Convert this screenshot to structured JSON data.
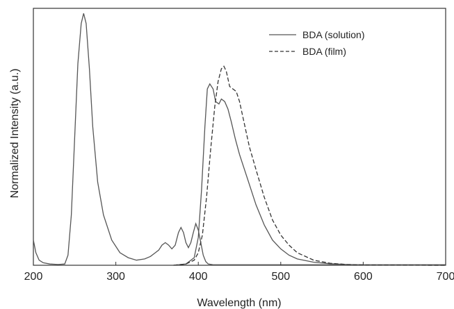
{
  "chart_data": {
    "type": "line",
    "title": "",
    "xlabel": "Wavelength (nm)",
    "ylabel": "Normalized Intensity (a.u.)",
    "xlim": [
      200,
      700
    ],
    "ylim": [
      0,
      1.02
    ],
    "xticks": [
      200,
      300,
      400,
      500,
      600,
      700
    ],
    "grid": false,
    "legend_position": "top-right",
    "series": [
      {
        "name": "BDA (solution)",
        "style": "solid",
        "color": "#555555",
        "x": [
          200,
          203,
          207,
          212,
          220,
          230,
          238,
          242,
          246,
          250,
          254,
          258,
          261,
          264,
          268,
          272,
          278,
          285,
          295,
          305,
          315,
          325,
          335,
          342,
          348,
          352,
          356,
          360,
          364,
          368,
          372,
          376,
          379,
          382,
          385,
          388,
          391,
          394,
          397,
          400,
          403,
          406,
          409,
          412,
          418,
          430,
          460,
          500,
          700
        ],
        "y": [
          0.1,
          0.05,
          0.02,
          0.01,
          0.005,
          0.003,
          0.005,
          0.04,
          0.2,
          0.5,
          0.8,
          0.96,
          1.0,
          0.96,
          0.78,
          0.55,
          0.33,
          0.2,
          0.1,
          0.05,
          0.03,
          0.02,
          0.025,
          0.035,
          0.05,
          0.06,
          0.08,
          0.09,
          0.08,
          0.065,
          0.08,
          0.13,
          0.15,
          0.13,
          0.09,
          0.07,
          0.09,
          0.13,
          0.165,
          0.14,
          0.09,
          0.04,
          0.015,
          0.005,
          0.002,
          0.002,
          0.002,
          0.002,
          0.002
        ]
      },
      {
        "name": "",
        "style": "solid",
        "color": "#555555",
        "x": [
          370,
          385,
          395,
          400,
          404,
          408,
          411,
          414,
          418,
          421,
          425,
          428,
          432,
          436,
          440,
          445,
          450,
          460,
          470,
          480,
          490,
          500,
          510,
          520,
          540,
          560,
          580,
          600,
          700
        ],
        "y": [
          0.0,
          0.005,
          0.03,
          0.11,
          0.3,
          0.55,
          0.7,
          0.72,
          0.7,
          0.65,
          0.64,
          0.66,
          0.65,
          0.62,
          0.57,
          0.5,
          0.44,
          0.34,
          0.24,
          0.16,
          0.1,
          0.065,
          0.04,
          0.025,
          0.012,
          0.006,
          0.003,
          0.001,
          0.0
        ]
      },
      {
        "name": "BDA (film)",
        "style": "dashed",
        "color": "#333333",
        "x": [
          370,
          385,
          395,
          400,
          405,
          410,
          415,
          420,
          424,
          428,
          431,
          434,
          438,
          442,
          446,
          450,
          456,
          462,
          470,
          480,
          490,
          500,
          510,
          520,
          540,
          560,
          580,
          600,
          700
        ],
        "y": [
          0.0,
          0.005,
          0.02,
          0.05,
          0.12,
          0.27,
          0.46,
          0.63,
          0.73,
          0.78,
          0.79,
          0.77,
          0.71,
          0.7,
          0.69,
          0.65,
          0.56,
          0.47,
          0.38,
          0.27,
          0.18,
          0.12,
          0.08,
          0.05,
          0.02,
          0.008,
          0.003,
          0.001,
          0.0
        ]
      }
    ]
  }
}
